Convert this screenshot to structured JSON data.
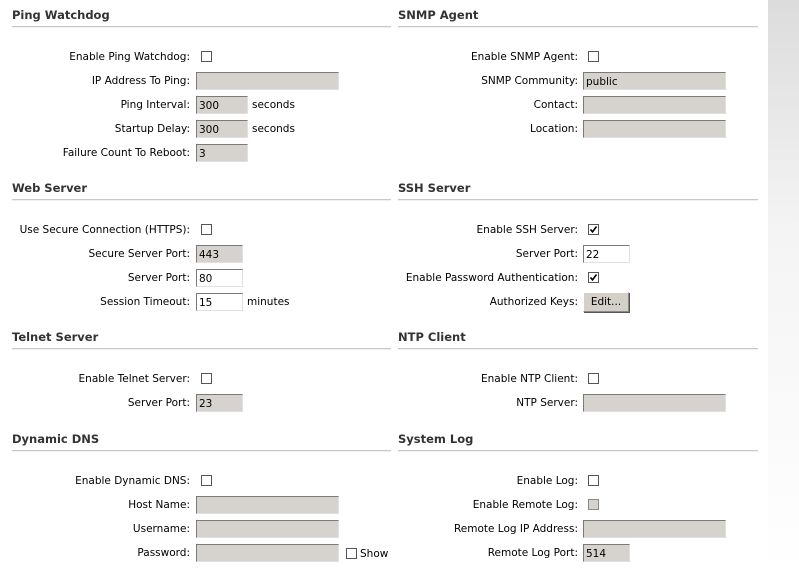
{
  "sections": [
    {
      "title": "Ping Watchdog",
      "fields": [
        {
          "label": "Enable Ping Watchdog:",
          "type": "checkbox",
          "checked": false
        },
        {
          "label": "IP Address To Ping:",
          "type": "text",
          "disabled": true
        },
        {
          "label": "Ping Interval:",
          "type": "text",
          "value": "300",
          "unit": "seconds",
          "disabled": true
        },
        {
          "label": "Startup Delay:",
          "type": "text",
          "value": "300",
          "unit": "seconds",
          "disabled": true
        },
        {
          "label": "Failure Count To Reboot:",
          "type": "text",
          "value": "3",
          "disabled": true
        }
      ]
    },
    {
      "title": "SNMP Agent",
      "fields": [
        {
          "label": "Enable SNMP Agent:",
          "type": "checkbox",
          "checked": false
        },
        {
          "label": "SNMP Community:",
          "type": "text",
          "value": "public",
          "disabled": true
        },
        {
          "label": "Contact:",
          "type": "text",
          "disabled": true
        },
        {
          "label": "Location:",
          "type": "text",
          "disabled": true
        }
      ]
    },
    {
      "title": "Web Server",
      "fields": [
        {
          "label": "Use Secure Connection (HTTPS):",
          "type": "checkbox",
          "checked": false
        },
        {
          "label": "Secure Server Port:",
          "type": "text",
          "value": "443",
          "disabled": true
        },
        {
          "label": "Server Port:",
          "type": "text",
          "value": "80",
          "disabled": false
        },
        {
          "label": "Session Timeout:",
          "type": "text",
          "value": "15",
          "unit": "minutes",
          "disabled": false
        }
      ]
    },
    {
      "title": "SSH Server",
      "fields": [
        {
          "label": "Enable SSH Server:",
          "type": "checkbox",
          "checked": true
        },
        {
          "label": "Server Port:",
          "type": "text",
          "value": "22",
          "disabled": false
        },
        {
          "label": "Enable Password Authentication:",
          "type": "checkbox",
          "checked": true
        },
        {
          "label": "Authorized Keys:",
          "type": "button",
          "value": "Edit..."
        }
      ]
    },
    {
      "title": "Telnet Server",
      "fields": [
        {
          "label": "Enable Telnet Server:",
          "type": "checkbox",
          "checked": false
        },
        {
          "label": "Server Port:",
          "type": "text",
          "value": "23",
          "disabled": true
        }
      ]
    },
    {
      "title": "NTP Client",
      "fields": [
        {
          "label": "Enable NTP Client:",
          "type": "checkbox",
          "checked": false
        },
        {
          "label": "NTP Server:",
          "type": "text",
          "disabled": true
        }
      ]
    },
    {
      "title": "Dynamic DNS",
      "fields": [
        {
          "label": "Enable Dynamic DNS:",
          "type": "checkbox",
          "checked": false
        },
        {
          "label": "Host Name:",
          "type": "text",
          "disabled": true
        },
        {
          "label": "Username:",
          "type": "text",
          "disabled": true
        },
        {
          "label": "Password:",
          "type": "text",
          "disabled": true,
          "show": {
            "label": "Show",
            "checked": false
          }
        }
      ]
    },
    {
      "title": "System Log",
      "fields": [
        {
          "label": "Enable Log:",
          "type": "checkbox",
          "checked": false
        },
        {
          "label": "Enable Remote Log:",
          "type": "checkbox",
          "checked": false,
          "disabled": true
        },
        {
          "label": "Remote Log IP Address:",
          "type": "text",
          "disabled": true
        },
        {
          "label": "Remote Log Port:",
          "type": "text",
          "value": "514",
          "disabled": true
        }
      ]
    }
  ]
}
